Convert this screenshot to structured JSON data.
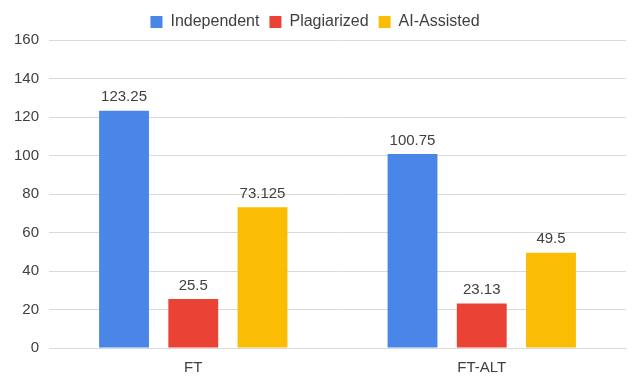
{
  "chart_data": {
    "type": "bar",
    "categories": [
      "FT",
      "FT-ALT"
    ],
    "series": [
      {
        "name": "Independent",
        "color": "#4a86e8",
        "values": [
          123.25,
          100.75
        ]
      },
      {
        "name": "Plagiarized",
        "color": "#ea4335",
        "values": [
          25.5,
          23.13
        ]
      },
      {
        "name": "AI-Assisted",
        "color": "#fbbc04",
        "values": [
          73.125,
          49.5
        ]
      }
    ],
    "ylim": [
      0,
      160
    ],
    "yticks": [
      0,
      20,
      40,
      60,
      80,
      100,
      120,
      140,
      160
    ],
    "grid": true,
    "legend": "top",
    "data_labels": true
  }
}
